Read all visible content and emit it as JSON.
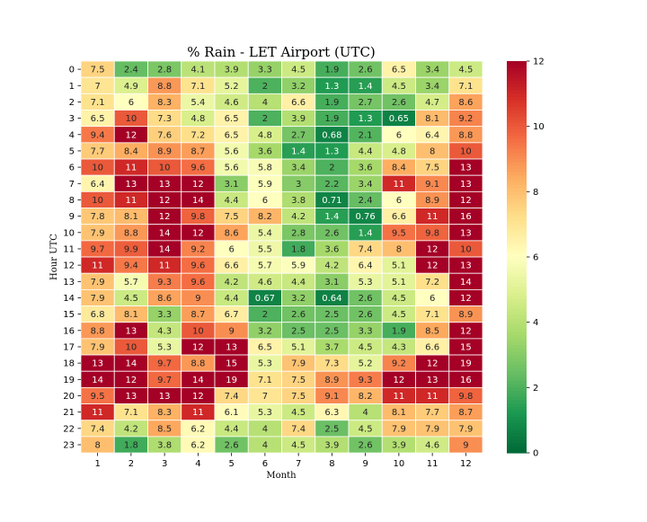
{
  "chart_data": {
    "type": "heatmap",
    "title": "% Rain - LET Airport (UTC)",
    "xlabel": "Month",
    "ylabel": "Hour UTC",
    "x": [
      "1",
      "2",
      "3",
      "4",
      "5",
      "6",
      "7",
      "8",
      "9",
      "10",
      "11",
      "12"
    ],
    "y": [
      "0",
      "1",
      "2",
      "3",
      "4",
      "5",
      "6",
      "7",
      "8",
      "9",
      "10",
      "11",
      "12",
      "13",
      "14",
      "15",
      "16",
      "17",
      "18",
      "19",
      "20",
      "21",
      "22",
      "23"
    ],
    "values": [
      [
        "7.5",
        "2.4",
        "2.8",
        "4.1",
        "3.9",
        "3.3",
        "4.5",
        "1.9",
        "2.6",
        "6.5",
        "3.4",
        "4.5"
      ],
      [
        "7",
        "4.9",
        "8.8",
        "7.1",
        "5.2",
        "2",
        "3.2",
        "1.3",
        "1.4",
        "4.5",
        "3.4",
        "7.1"
      ],
      [
        "7.1",
        "6",
        "8.3",
        "5.4",
        "4.6",
        "4",
        "6.6",
        "1.9",
        "2.7",
        "2.6",
        "4.7",
        "8.6"
      ],
      [
        "6.5",
        "10",
        "7.3",
        "4.8",
        "6.5",
        "2",
        "3.9",
        "1.9",
        "1.3",
        "0.65",
        "8.1",
        "9.2"
      ],
      [
        "9.4",
        "12",
        "7.6",
        "7.2",
        "6.5",
        "4.8",
        "2.7",
        "0.68",
        "2.1",
        "6",
        "6.4",
        "8.8"
      ],
      [
        "7.7",
        "8.4",
        "8.9",
        "8.7",
        "5.6",
        "3.6",
        "1.4",
        "1.3",
        "4.4",
        "4.8",
        "8",
        "10"
      ],
      [
        "10",
        "11",
        "10",
        "9.6",
        "5.6",
        "5.8",
        "3.4",
        "2",
        "3.6",
        "8.4",
        "7.5",
        "13"
      ],
      [
        "6.4",
        "13",
        "13",
        "12",
        "3.1",
        "5.9",
        "3",
        "2.2",
        "3.4",
        "11",
        "9.1",
        "13"
      ],
      [
        "10",
        "11",
        "12",
        "14",
        "4.4",
        "6",
        "3.8",
        "0.71",
        "2.4",
        "6",
        "8.9",
        "12"
      ],
      [
        "7.8",
        "8.1",
        "12",
        "9.8",
        "7.5",
        "8.2",
        "4.2",
        "1.4",
        "0.76",
        "6.6",
        "11",
        "16"
      ],
      [
        "7.9",
        "8.8",
        "14",
        "12",
        "8.6",
        "5.4",
        "2.8",
        "2.6",
        "1.4",
        "9.5",
        "9.8",
        "13"
      ],
      [
        "9.7",
        "9.9",
        "14",
        "9.2",
        "6",
        "5.5",
        "1.8",
        "3.6",
        "7.4",
        "8",
        "12",
        "10"
      ],
      [
        "11",
        "9.4",
        "11",
        "9.6",
        "6.6",
        "5.7",
        "5.9",
        "4.2",
        "6.4",
        "5.1",
        "12",
        "13"
      ],
      [
        "7.9",
        "5.7",
        "9.3",
        "9.6",
        "4.2",
        "4.6",
        "4.4",
        "3.1",
        "5.3",
        "5.1",
        "7.2",
        "14"
      ],
      [
        "7.9",
        "4.5",
        "8.6",
        "9",
        "4.4",
        "0.67",
        "3.2",
        "0.64",
        "2.6",
        "4.5",
        "6",
        "12"
      ],
      [
        "6.8",
        "8.1",
        "3.3",
        "8.7",
        "6.7",
        "2",
        "2.6",
        "2.5",
        "2.6",
        "4.5",
        "7.1",
        "8.9"
      ],
      [
        "8.8",
        "13",
        "4.3",
        "10",
        "9",
        "3.2",
        "2.5",
        "2.5",
        "3.3",
        "1.9",
        "8.5",
        "12"
      ],
      [
        "7.9",
        "10",
        "5.3",
        "12",
        "13",
        "6.5",
        "5.1",
        "3.7",
        "4.5",
        "4.3",
        "6.6",
        "15"
      ],
      [
        "13",
        "14",
        "9.7",
        "8.8",
        "15",
        "5.3",
        "7.9",
        "7.3",
        "5.2",
        "9.2",
        "12",
        "19"
      ],
      [
        "14",
        "12",
        "9.7",
        "14",
        "19",
        "7.1",
        "7.5",
        "8.9",
        "9.3",
        "12",
        "13",
        "16"
      ],
      [
        "9.5",
        "13",
        "13",
        "12",
        "7.4",
        "7",
        "7.5",
        "9.1",
        "8.2",
        "11",
        "11",
        "9.8"
      ],
      [
        "11",
        "7.1",
        "8.3",
        "11",
        "6.1",
        "5.3",
        "4.5",
        "6.3",
        "4",
        "8.1",
        "7.7",
        "8.7"
      ],
      [
        "7.4",
        "4.2",
        "8.5",
        "6.2",
        "4.4",
        "4",
        "7.4",
        "2.5",
        "4.5",
        "7.9",
        "7.9",
        "7.9"
      ],
      [
        "8",
        "1.8",
        "3.8",
        "6.2",
        "2.6",
        "4",
        "4.5",
        "3.9",
        "2.6",
        "3.9",
        "4.6",
        "9"
      ]
    ],
    "colorbar": {
      "min": 0,
      "max": 12,
      "ticks": [
        "0",
        "2",
        "4",
        "6",
        "8",
        "10",
        "12"
      ]
    },
    "colormap": "RdYlGn_r",
    "grid": false,
    "legend": "colorbar-right"
  }
}
